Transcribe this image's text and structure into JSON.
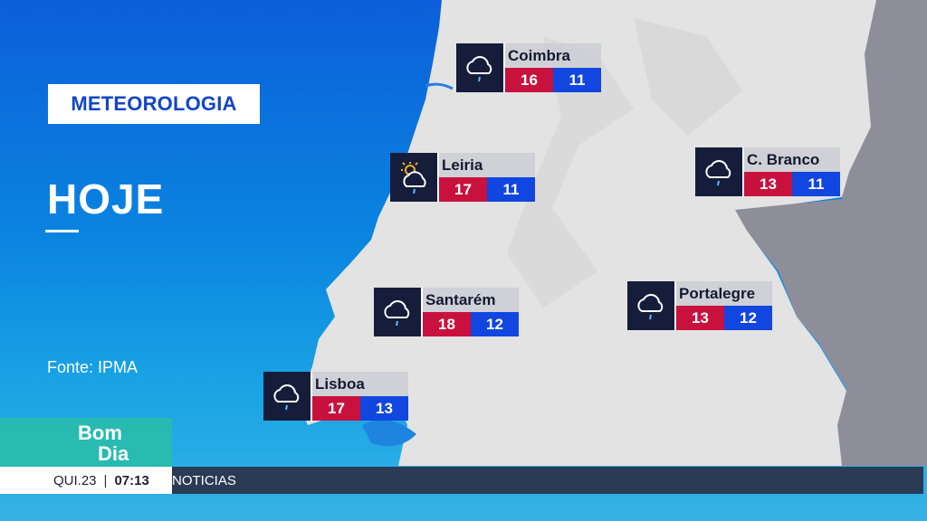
{
  "header": {
    "title": "METEOROLOGIA",
    "day": "HOJE"
  },
  "source": "Fonte: IPMA",
  "cities": [
    {
      "name": "Coimbra",
      "max": "16",
      "min": "11",
      "icon": "rain-cloud-icon"
    },
    {
      "name": "Leiria",
      "max": "17",
      "min": "11",
      "icon": "sun-cloud-rain-icon"
    },
    {
      "name": "C. Branco",
      "max": "13",
      "min": "11",
      "icon": "rain-cloud-icon"
    },
    {
      "name": "Santarém",
      "max": "18",
      "min": "12",
      "icon": "rain-cloud-icon"
    },
    {
      "name": "Portalegre",
      "max": "13",
      "min": "12",
      "icon": "rain-cloud-icon"
    },
    {
      "name": "Lisboa",
      "max": "17",
      "min": "13",
      "icon": "rain-cloud-icon"
    }
  ],
  "logo": {
    "line1": "Bom",
    "line2": "Dia"
  },
  "ticker": {
    "date": "QUI.23",
    "time": "07:13",
    "text": "NOTICIAS"
  },
  "colors": {
    "max_temp": "#c8123d",
    "min_temp": "#1146e0",
    "sea": "#0a78d8",
    "land": "#e3e3e3",
    "spain": "#8e8e9b"
  }
}
